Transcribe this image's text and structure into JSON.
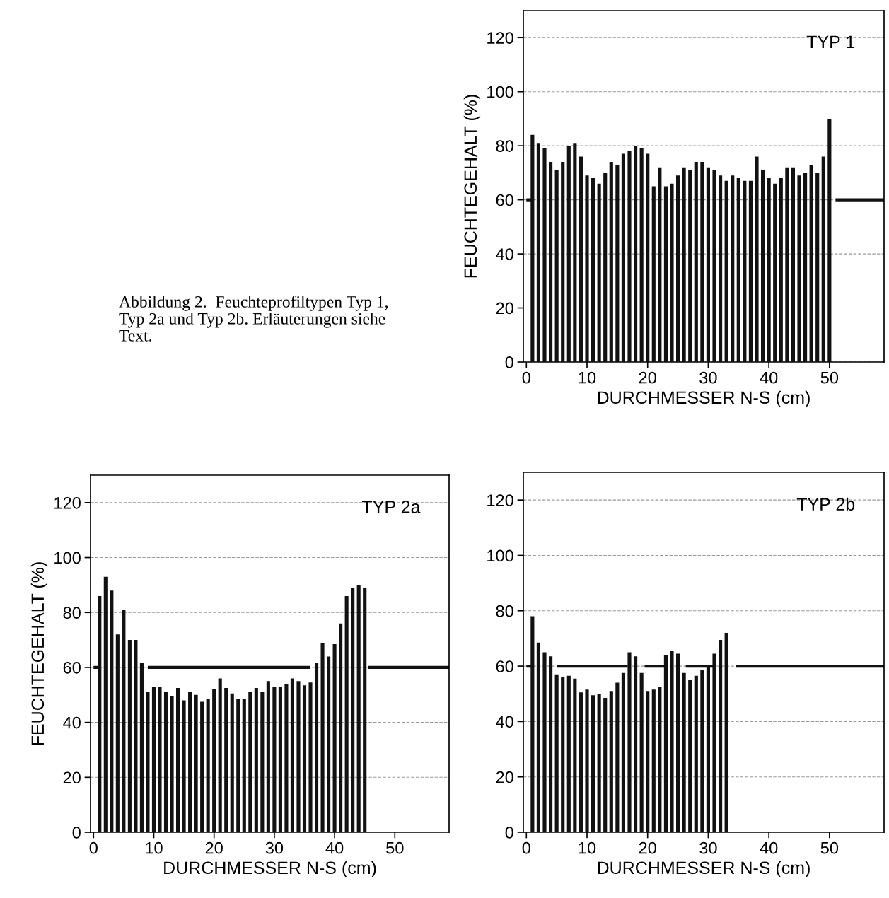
{
  "chart_data": [
    {
      "type": "bar",
      "title": "TYP 1",
      "xlabel": "DURCHMESSER N-S (cm)",
      "ylabel": "FEUCHTEGEHALT (%)",
      "annotations": [
        "Abbildung 2.  Feuchteprofiltypen Typ 1,\nTyp 2a und Typ 2b. Erläuterungen siehe\nText."
      ],
      "xlim": [
        -0.5,
        59
      ],
      "xticks": [
        0,
        10,
        20,
        30,
        40,
        50
      ],
      "ylim": [
        0,
        130
      ],
      "yticks": [
        0,
        20,
        40,
        60,
        80,
        100,
        120
      ],
      "grid": "y",
      "series": [
        {
          "color": "#111111",
          "x": [
            1,
            2,
            3,
            4,
            5,
            6,
            7,
            8,
            9,
            10,
            11,
            12,
            13,
            14,
            15,
            16,
            17,
            18,
            19,
            20,
            21,
            22,
            23,
            24,
            25,
            26,
            27,
            28,
            29,
            30,
            31,
            32,
            33,
            34,
            35,
            36,
            37,
            38,
            39,
            40,
            41,
            42,
            43,
            44,
            45,
            46,
            47,
            48,
            49,
            50
          ],
          "values": [
            84,
            81,
            79,
            74,
            71,
            74,
            80,
            81,
            76,
            69,
            68,
            66,
            70,
            74,
            73,
            77,
            78,
            80,
            79,
            77,
            65,
            72,
            65,
            66,
            69,
            72,
            71,
            74,
            74,
            72,
            71,
            69,
            67,
            69,
            68,
            67,
            67,
            76,
            71,
            68,
            66,
            68,
            72,
            72,
            69,
            70,
            73,
            70,
            76,
            90
          ]
        },
        {
          "type": "line",
          "color": "#111111",
          "x": [
            0,
            1,
            25,
            51,
            59
          ],
          "values": [
            60,
            60,
            null,
            60,
            60
          ]
        }
      ]
    },
    {
      "type": "bar",
      "title": "TYP 2a",
      "xlabel": "DURCHMESSER N-S (cm)",
      "ylabel": "FEUCHTEGEHALT (%)",
      "xlim": [
        -0.5,
        59
      ],
      "xticks": [
        0,
        10,
        20,
        30,
        40,
        50
      ],
      "ylim": [
        0,
        130
      ],
      "yticks": [
        0,
        20,
        40,
        60,
        80,
        100,
        120
      ],
      "grid": "y",
      "series": [
        {
          "color": "#111111",
          "x": [
            1,
            2,
            3,
            4,
            5,
            6,
            7,
            8,
            9,
            10,
            11,
            12,
            13,
            14,
            15,
            16,
            17,
            18,
            19,
            20,
            21,
            22,
            23,
            24,
            25,
            26,
            27,
            28,
            29,
            30,
            31,
            32,
            33,
            34,
            35,
            36,
            37,
            38,
            39,
            40,
            41,
            42,
            43,
            44,
            45
          ],
          "values": [
            86,
            93,
            88,
            72,
            81,
            70,
            70,
            61.5,
            51,
            53,
            53,
            51,
            49.5,
            52.5,
            48,
            51,
            50,
            47.5,
            48.5,
            52,
            56,
            52.5,
            50.5,
            48.5,
            48.5,
            51,
            52.5,
            51,
            55,
            53,
            53,
            54,
            56,
            55,
            53.5,
            54.5,
            61.5,
            69,
            64,
            68.5,
            76,
            86,
            89,
            90,
            89
          ]
        },
        {
          "type": "line",
          "color": "#111111",
          "x": [
            0,
            1,
            5,
            9,
            36,
            40,
            45.5,
            59
          ],
          "values": [
            60,
            60,
            null,
            60,
            60,
            null,
            60,
            60
          ]
        }
      ]
    },
    {
      "type": "bar",
      "title": "TYP 2b",
      "xlabel": "DURCHMESSER N-S (cm)",
      "xlim": [
        -0.5,
        59
      ],
      "xticks": [
        0,
        10,
        20,
        30,
        40,
        50
      ],
      "ylim": [
        0,
        130
      ],
      "yticks": [
        0,
        20,
        40,
        60,
        80,
        100,
        120
      ],
      "grid": "y",
      "series": [
        {
          "color": "#111111",
          "x": [
            1,
            2,
            3,
            4,
            5,
            6,
            7,
            8,
            9,
            10,
            11,
            12,
            13,
            14,
            15,
            16,
            17,
            18,
            19,
            20,
            21,
            22,
            23,
            24,
            25,
            26,
            27,
            28,
            29,
            30,
            31,
            32,
            33
          ],
          "values": [
            78,
            68.5,
            65,
            63.5,
            57,
            56,
            56.5,
            55.5,
            50.5,
            51.5,
            49.5,
            50,
            48.5,
            51,
            54,
            57.5,
            65,
            63.5,
            57.5,
            51,
            51.5,
            52.5,
            64,
            65.5,
            64.5,
            57.5,
            55,
            56.5,
            58.5,
            60,
            64.5,
            69.5,
            72
          ]
        },
        {
          "type": "line",
          "color": "#111111",
          "x": [
            0,
            1,
            3,
            5,
            16.7,
            18,
            19.5,
            23,
            25,
            26.3,
            31,
            33,
            34.5,
            59
          ],
          "values": [
            60,
            60,
            null,
            60,
            60,
            null,
            60,
            60,
            null,
            60,
            60,
            null,
            60,
            60
          ]
        }
      ]
    }
  ]
}
